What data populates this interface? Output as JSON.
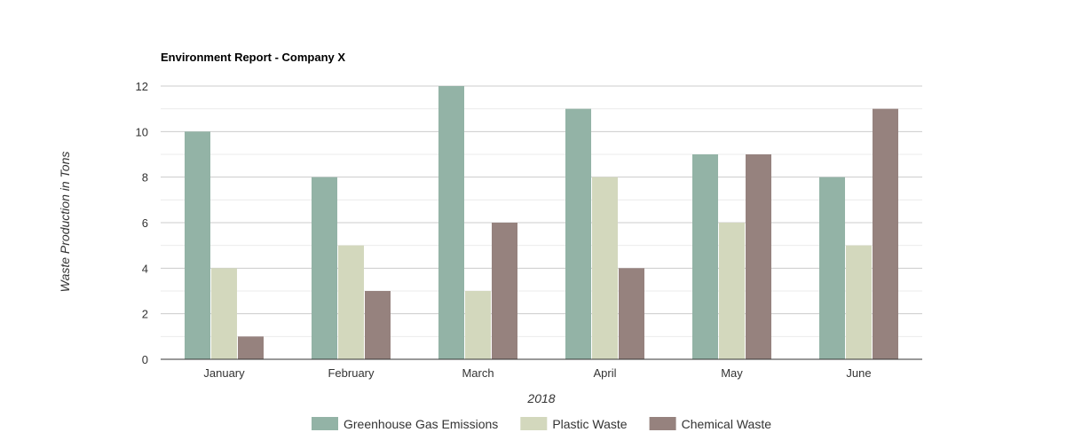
{
  "chart_data": {
    "type": "bar",
    "title": "Environment Report - Company X",
    "xlabel": "2018",
    "ylabel": "Waste Production in Tons",
    "categories": [
      "January",
      "February",
      "March",
      "April",
      "May",
      "June"
    ],
    "series": [
      {
        "name": "Greenhouse Gas Emissions",
        "values": [
          10,
          8,
          12,
          11,
          9,
          8
        ],
        "color": "#93b3a6"
      },
      {
        "name": "Plastic Waste",
        "values": [
          4,
          5,
          3,
          8,
          6,
          5
        ],
        "color": "#d3d8bd"
      },
      {
        "name": "Chemical Waste",
        "values": [
          1,
          3,
          6,
          4,
          9,
          11
        ],
        "color": "#96827e"
      }
    ],
    "ylim": [
      0,
      12
    ],
    "yticks": [
      0,
      2,
      4,
      6,
      8,
      10,
      12
    ],
    "grid": true,
    "legend_position": "bottom"
  }
}
